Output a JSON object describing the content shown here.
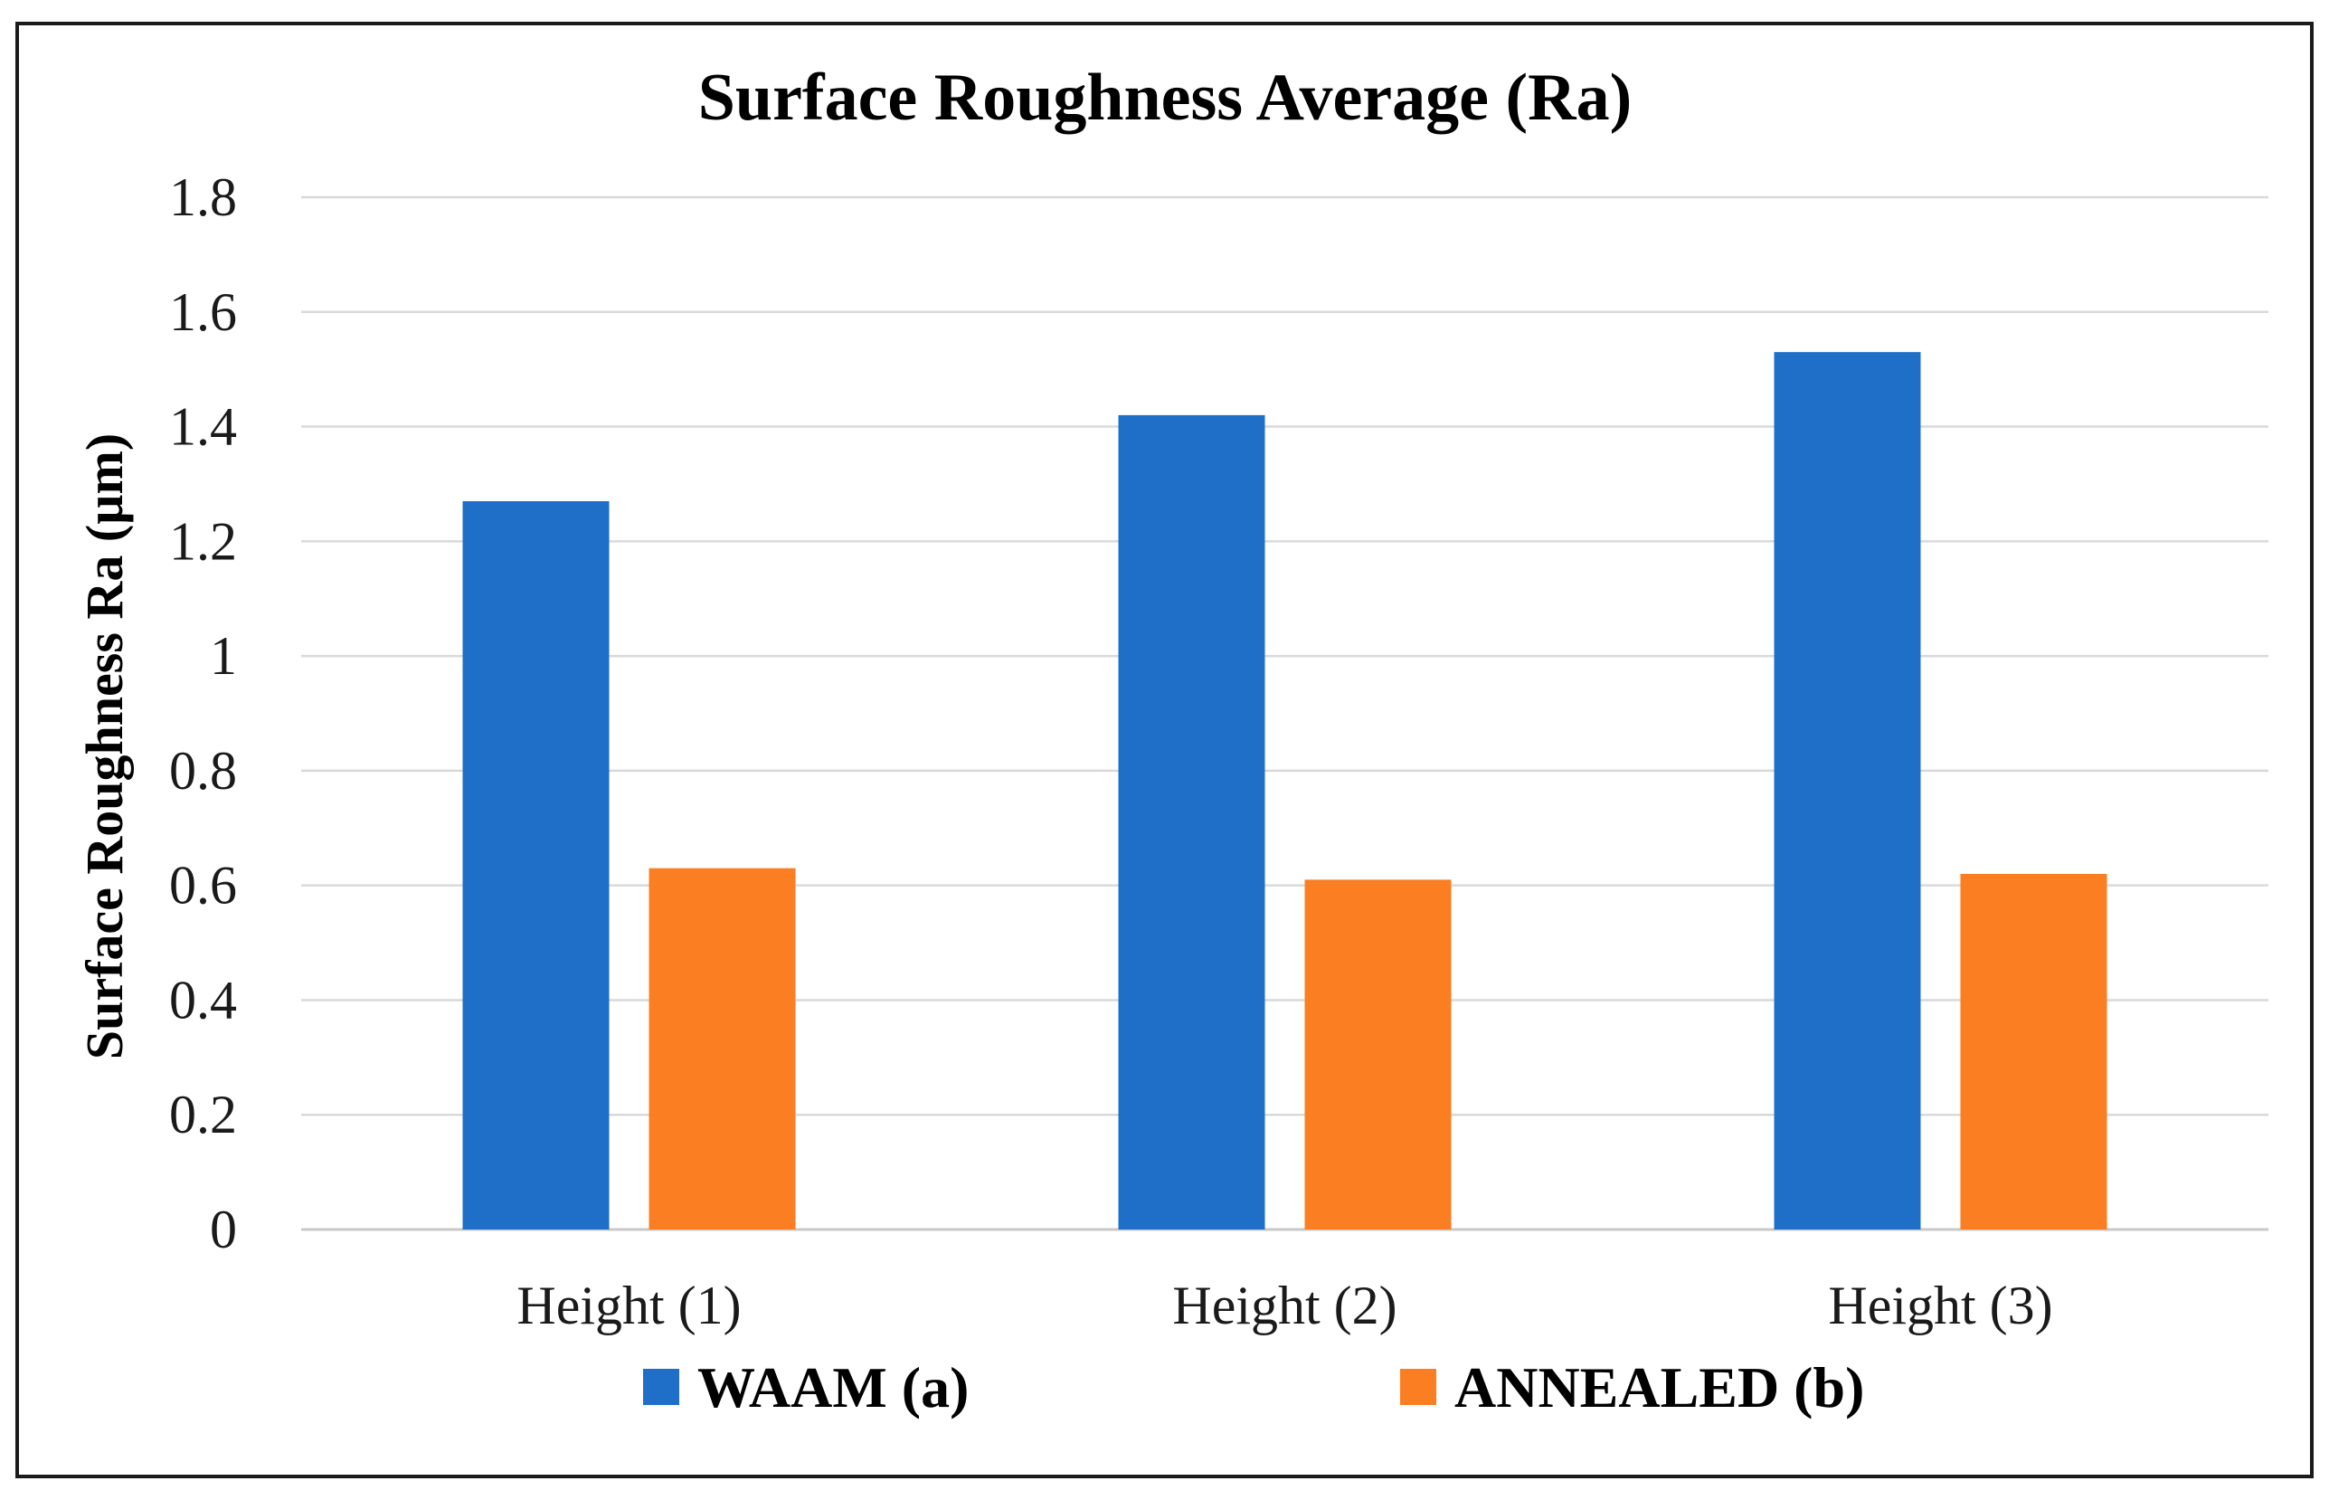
{
  "chart_data": {
    "type": "bar",
    "title": "Surface Roughness Average (Ra)",
    "xlabel": "",
    "ylabel": "Surface Roughness Ra (µm)",
    "categories": [
      "Height (1)",
      "Height (2)",
      "Height (3)"
    ],
    "series": [
      {
        "name": "WAAM (a)",
        "color": "#1F6FC8",
        "values": [
          1.27,
          1.42,
          1.53
        ]
      },
      {
        "name": "ANNEALED (b)",
        "color": "#FB7E23",
        "values": [
          0.63,
          0.61,
          0.62
        ]
      }
    ],
    "ylim": [
      0,
      1.8
    ],
    "yticks": [
      "0",
      "0.2",
      "0.4",
      "0.6",
      "0.8",
      "1",
      "1.2",
      "1.4",
      "1.6",
      "1.8"
    ],
    "grid": true,
    "legend_position": "bottom"
  }
}
